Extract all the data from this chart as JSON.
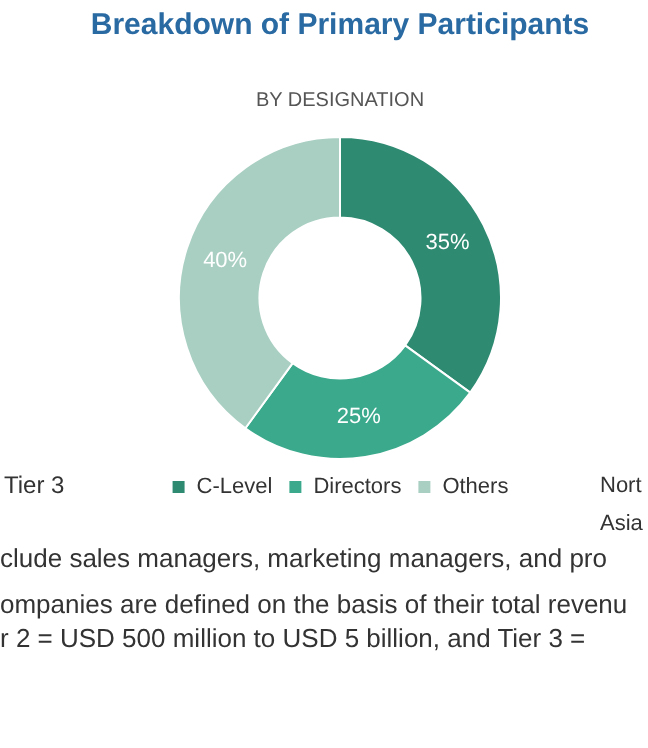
{
  "chart_data": {
    "type": "donut",
    "title": "Breakdown of Primary Participants",
    "subtitle": "BY DESIGNATION",
    "categories": [
      "C-Level",
      "Directors",
      "Others"
    ],
    "values": [
      35,
      25,
      40
    ],
    "colors": [
      "#2f8a72",
      "#3aa98c",
      "#a9cfc3"
    ],
    "value_labels": [
      "35%",
      "25%",
      "40%"
    ],
    "legend": "bottom",
    "annotations": [
      "Tier 3",
      "Nort",
      "Asia",
      "clude sales managers, marketing managers, and pro",
      "ompanies are defined on the basis of their total revenu",
      "r 2 = USD 500 million to USD 5 billion, and Tier 3 ="
    ]
  }
}
